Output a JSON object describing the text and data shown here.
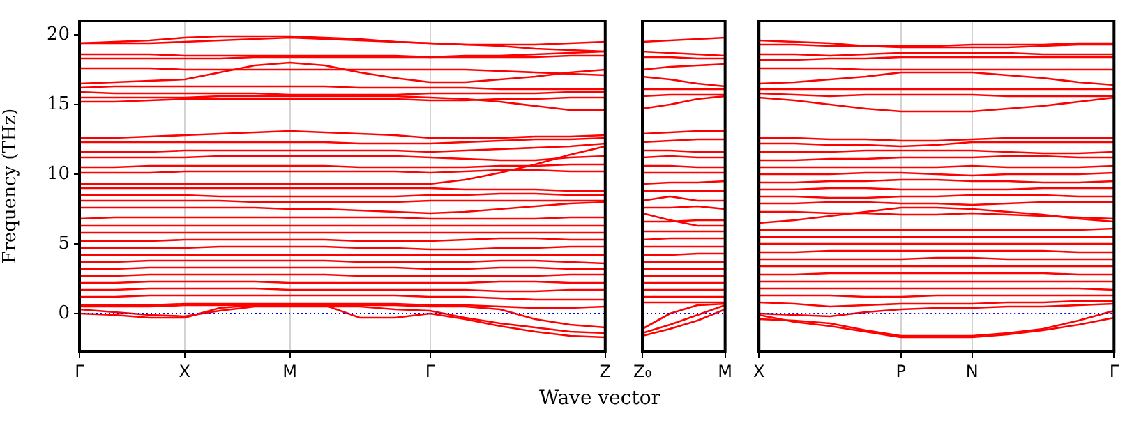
{
  "chart_data": [
    {
      "type": "line",
      "color": "#ff0000",
      "ylabel": "Frequency (THz)",
      "ylim": [
        -2.7,
        21
      ],
      "yticks": [
        0,
        5,
        10,
        15,
        20
      ],
      "grid": "x",
      "ref_lines": [
        {
          "axis": "y",
          "value": 0,
          "color": "#0000ff",
          "line_style": "dotted"
        }
      ],
      "categories": [
        "Γ",
        null,
        null,
        "X",
        null,
        null,
        "M",
        null,
        null,
        null,
        "Γ",
        null,
        null,
        null,
        null,
        "Z"
      ],
      "series": [
        {
          "values": [
            19.4,
            19.5,
            19.6,
            19.8,
            19.9,
            19.9,
            19.9,
            19.8,
            19.7,
            19.5,
            19.4,
            19.3,
            19.2,
            19.0,
            18.9,
            18.8
          ]
        },
        {
          "values": [
            19.4,
            19.4,
            19.4,
            19.5,
            19.6,
            19.7,
            19.8,
            19.7,
            19.6,
            19.5,
            19.4,
            19.3,
            19.3,
            19.3,
            19.4,
            19.5
          ]
        },
        {
          "values": [
            18.6,
            18.6,
            18.6,
            18.5,
            18.5,
            18.5,
            18.5,
            18.5,
            18.5,
            18.5,
            18.4,
            18.5,
            18.5,
            18.6,
            18.7,
            18.8
          ]
        },
        {
          "values": [
            18.3,
            18.3,
            18.3,
            18.3,
            18.3,
            18.4,
            18.4,
            18.4,
            18.4,
            18.4,
            18.4,
            18.4,
            18.4,
            18.4,
            18.5,
            18.5
          ]
        },
        {
          "values": [
            17.6,
            17.6,
            17.6,
            17.5,
            17.5,
            17.5,
            17.5,
            17.5,
            17.5,
            17.5,
            17.5,
            17.5,
            17.4,
            17.3,
            17.2,
            17.1
          ]
        },
        {
          "values": [
            16.5,
            16.6,
            16.7,
            16.8,
            17.3,
            17.8,
            18.0,
            17.8,
            17.3,
            16.9,
            16.6,
            16.6,
            16.8,
            17.0,
            17.3,
            17.5
          ]
        },
        {
          "values": [
            16.2,
            16.3,
            16.3,
            16.3,
            16.3,
            16.3,
            16.3,
            16.3,
            16.2,
            16.2,
            16.2,
            16.2,
            16.1,
            16.1,
            16.1,
            16.1
          ]
        },
        {
          "values": [
            15.9,
            15.8,
            15.8,
            15.8,
            15.8,
            15.8,
            15.7,
            15.7,
            15.7,
            15.7,
            15.8,
            15.8,
            15.8,
            15.8,
            15.9,
            15.9
          ]
        },
        {
          "values": [
            15.5,
            15.5,
            15.5,
            15.5,
            15.6,
            15.6,
            15.6,
            15.6,
            15.6,
            15.6,
            15.5,
            15.4,
            15.2,
            14.9,
            14.6,
            14.6
          ]
        },
        {
          "values": [
            15.2,
            15.2,
            15.3,
            15.4,
            15.4,
            15.4,
            15.4,
            15.4,
            15.4,
            15.4,
            15.3,
            15.3,
            15.4,
            15.4,
            15.5,
            15.5
          ]
        },
        {
          "values": [
            12.6,
            12.6,
            12.7,
            12.8,
            12.9,
            13.0,
            13.1,
            13.0,
            12.9,
            12.8,
            12.6,
            12.6,
            12.6,
            12.7,
            12.7,
            12.8
          ]
        },
        {
          "values": [
            12.3,
            12.3,
            12.3,
            12.3,
            12.3,
            12.3,
            12.3,
            12.3,
            12.2,
            12.2,
            12.2,
            12.3,
            12.4,
            12.5,
            12.5,
            12.6
          ]
        },
        {
          "values": [
            11.6,
            11.6,
            11.6,
            11.7,
            11.7,
            11.7,
            11.7,
            11.7,
            11.7,
            11.7,
            11.6,
            11.7,
            11.8,
            11.9,
            12.0,
            12.2
          ]
        },
        {
          "values": [
            11.2,
            11.2,
            11.2,
            11.2,
            11.3,
            11.3,
            11.3,
            11.3,
            11.3,
            11.3,
            11.2,
            11.1,
            11.0,
            11.0,
            11.2,
            11.3
          ]
        },
        {
          "values": [
            10.5,
            10.5,
            10.6,
            10.6,
            10.6,
            10.6,
            10.6,
            10.6,
            10.5,
            10.5,
            10.5,
            10.5,
            10.6,
            10.6,
            10.7,
            10.7
          ]
        },
        {
          "values": [
            10.1,
            10.1,
            10.1,
            10.2,
            10.2,
            10.2,
            10.2,
            10.2,
            10.2,
            10.2,
            10.1,
            10.2,
            10.3,
            10.3,
            10.2,
            10.2
          ]
        },
        {
          "values": [
            9.3,
            9.3,
            9.3,
            9.3,
            9.3,
            9.3,
            9.3,
            9.3,
            9.3,
            9.3,
            9.3,
            9.6,
            10.1,
            10.7,
            11.4,
            12.0
          ]
        },
        {
          "values": [
            9.0,
            9.0,
            9.0,
            9.0,
            9.0,
            9.0,
            9.0,
            9.0,
            9.0,
            9.0,
            9.0,
            8.9,
            8.9,
            8.9,
            8.8,
            8.8
          ]
        },
        {
          "values": [
            8.5,
            8.5,
            8.5,
            8.5,
            8.4,
            8.4,
            8.4,
            8.4,
            8.4,
            8.4,
            8.5,
            8.5,
            8.6,
            8.6,
            8.5,
            8.5
          ]
        },
        {
          "values": [
            8.1,
            8.1,
            8.1,
            8.1,
            8.1,
            8.0,
            8.0,
            8.0,
            8.0,
            8.0,
            8.1,
            8.1,
            8.1,
            8.1,
            8.1,
            8.1
          ]
        },
        {
          "values": [
            7.6,
            7.6,
            7.6,
            7.6,
            7.6,
            7.6,
            7.5,
            7.5,
            7.4,
            7.3,
            7.2,
            7.3,
            7.5,
            7.7,
            7.9,
            8.0
          ]
        },
        {
          "values": [
            6.8,
            6.9,
            6.9,
            6.9,
            6.9,
            6.9,
            6.9,
            6.9,
            6.9,
            6.9,
            6.8,
            6.8,
            6.8,
            6.8,
            6.9,
            6.9
          ]
        },
        {
          "values": [
            6.3,
            6.3,
            6.3,
            6.3,
            6.3,
            6.3,
            6.3,
            6.3,
            6.3,
            6.3,
            6.3,
            6.3,
            6.3,
            6.3,
            6.3,
            6.3
          ]
        },
        {
          "values": [
            5.8,
            5.8,
            5.8,
            5.8,
            5.8,
            5.8,
            5.8,
            5.8,
            5.8,
            5.8,
            5.8,
            5.8,
            5.8,
            5.8,
            5.8,
            5.8
          ]
        },
        {
          "values": [
            5.2,
            5.2,
            5.2,
            5.3,
            5.3,
            5.3,
            5.3,
            5.3,
            5.2,
            5.2,
            5.2,
            5.3,
            5.4,
            5.4,
            5.3,
            5.3
          ]
        },
        {
          "values": [
            4.7,
            4.7,
            4.7,
            4.7,
            4.8,
            4.8,
            4.8,
            4.8,
            4.7,
            4.7,
            4.6,
            4.6,
            4.7,
            4.7,
            4.8,
            4.8
          ]
        },
        {
          "values": [
            4.2,
            4.2,
            4.2,
            4.2,
            4.2,
            4.2,
            4.2,
            4.2,
            4.2,
            4.2,
            4.2,
            4.2,
            4.2,
            4.2,
            4.2,
            4.2
          ]
        },
        {
          "values": [
            3.7,
            3.7,
            3.8,
            3.8,
            3.8,
            3.8,
            3.8,
            3.8,
            3.7,
            3.7,
            3.7,
            3.7,
            3.8,
            3.8,
            3.7,
            3.6
          ]
        },
        {
          "values": [
            3.2,
            3.2,
            3.3,
            3.3,
            3.3,
            3.3,
            3.3,
            3.3,
            3.3,
            3.3,
            3.2,
            3.2,
            3.3,
            3.3,
            3.2,
            3.2
          ]
        },
        {
          "values": [
            2.7,
            2.7,
            2.8,
            2.8,
            2.8,
            2.8,
            2.8,
            2.8,
            2.7,
            2.7,
            2.7,
            2.7,
            2.7,
            2.7,
            2.8,
            2.8
          ]
        },
        {
          "values": [
            2.2,
            2.2,
            2.3,
            2.3,
            2.3,
            2.3,
            2.2,
            2.2,
            2.2,
            2.2,
            2.2,
            2.2,
            2.3,
            2.3,
            2.2,
            2.2
          ]
        },
        {
          "values": [
            1.7,
            1.7,
            1.8,
            1.8,
            1.8,
            1.8,
            1.7,
            1.7,
            1.7,
            1.7,
            1.7,
            1.7,
            1.6,
            1.6,
            1.7,
            1.7
          ]
        },
        {
          "values": [
            1.2,
            1.2,
            1.3,
            1.3,
            1.3,
            1.3,
            1.3,
            1.3,
            1.3,
            1.3,
            1.2,
            1.2,
            1.1,
            1.0,
            1.0,
            1.0
          ]
        },
        {
          "values": [
            0.6,
            0.6,
            0.6,
            0.7,
            0.7,
            0.7,
            0.7,
            0.7,
            0.7,
            0.7,
            0.6,
            0.6,
            0.5,
            0.4,
            0.4,
            0.5
          ]
        },
        {
          "values": [
            0.0,
            -0.1,
            -0.3,
            -0.3,
            0.4,
            0.6,
            0.6,
            0.6,
            -0.3,
            -0.3,
            0.0,
            -0.4,
            -0.9,
            -1.3,
            -1.6,
            -1.7
          ]
        },
        {
          "values": [
            0.3,
            0.1,
            -0.1,
            -0.2,
            0.2,
            0.5,
            0.5,
            0.5,
            0.5,
            0.3,
            0.2,
            -0.3,
            -0.7,
            -1.0,
            -1.3,
            -1.4
          ]
        },
        {
          "values": [
            0.5,
            0.5,
            0.5,
            0.6,
            0.6,
            0.6,
            0.6,
            0.6,
            0.6,
            0.6,
            0.5,
            0.5,
            0.3,
            -0.4,
            -0.8,
            -1.0
          ]
        }
      ]
    },
    {
      "type": "line",
      "color": "#ff0000",
      "xlabel": "Wave vector",
      "tick_labels": "x",
      "ylim": [
        -2.7,
        21
      ],
      "ref_lines": [
        {
          "axis": "y",
          "value": 0,
          "color": "#0000ff",
          "line_style": "dotted"
        }
      ],
      "categories": [
        "Z₀",
        null,
        null,
        "M"
      ],
      "series": [
        {
          "values": [
            19.5,
            19.6,
            19.7,
            19.8
          ]
        },
        {
          "values": [
            18.8,
            18.7,
            18.6,
            18.5
          ]
        },
        {
          "values": [
            18.4,
            18.4,
            18.3,
            18.3
          ]
        },
        {
          "values": [
            17.5,
            17.7,
            17.8,
            17.9
          ]
        },
        {
          "values": [
            17.0,
            16.8,
            16.5,
            16.3
          ]
        },
        {
          "values": [
            16.1,
            16.1,
            16.1,
            16.1
          ]
        },
        {
          "values": [
            15.6,
            15.7,
            15.7,
            15.7
          ]
        },
        {
          "values": [
            14.7,
            15.0,
            15.4,
            15.6
          ]
        },
        {
          "values": [
            12.9,
            13.0,
            13.1,
            13.1
          ]
        },
        {
          "values": [
            12.3,
            12.4,
            12.5,
            12.5
          ]
        },
        {
          "values": [
            11.7,
            11.7,
            11.6,
            11.6
          ]
        },
        {
          "values": [
            11.2,
            11.3,
            11.2,
            11.2
          ]
        },
        {
          "values": [
            10.6,
            10.6,
            10.5,
            10.5
          ]
        },
        {
          "values": [
            10.1,
            10.1,
            10.1,
            10.1
          ]
        },
        {
          "values": [
            9.3,
            9.4,
            9.4,
            9.5
          ]
        },
        {
          "values": [
            8.8,
            8.8,
            8.8,
            8.8
          ]
        },
        {
          "values": [
            8.1,
            8.4,
            8.1,
            8.1
          ]
        },
        {
          "values": [
            7.6,
            7.6,
            7.7,
            7.5
          ]
        },
        {
          "values": [
            7.2,
            6.7,
            6.3,
            6.3
          ]
        },
        {
          "values": [
            6.6,
            6.6,
            6.7,
            6.7
          ]
        },
        {
          "values": [
            5.9,
            5.9,
            5.9,
            5.9
          ]
        },
        {
          "values": [
            5.3,
            5.4,
            5.4,
            5.4
          ]
        },
        {
          "values": [
            4.8,
            4.8,
            4.8,
            4.8
          ]
        },
        {
          "values": [
            4.2,
            4.2,
            4.3,
            4.3
          ]
        },
        {
          "values": [
            3.7,
            3.7,
            3.7,
            3.7
          ]
        },
        {
          "values": [
            3.2,
            3.2,
            3.2,
            3.2
          ]
        },
        {
          "values": [
            2.7,
            2.7,
            2.7,
            2.7
          ]
        },
        {
          "values": [
            2.2,
            2.2,
            2.2,
            2.2
          ]
        },
        {
          "values": [
            1.7,
            1.7,
            1.7,
            1.7
          ]
        },
        {
          "values": [
            1.2,
            1.2,
            1.2,
            1.2
          ]
        },
        {
          "values": [
            0.8,
            0.8,
            0.8,
            0.8
          ]
        },
        {
          "values": [
            -1.6,
            -1.1,
            -0.5,
            0.3
          ]
        },
        {
          "values": [
            -1.4,
            -0.8,
            -0.1,
            0.6
          ]
        },
        {
          "values": [
            -1.1,
            0.0,
            0.6,
            0.7
          ]
        }
      ]
    },
    {
      "type": "line",
      "color": "#ff0000",
      "tick_labels": "x",
      "ylim": [
        -2.7,
        21
      ],
      "grid": "x",
      "ref_lines": [
        {
          "axis": "y",
          "value": 0,
          "color": "#0000ff",
          "line_style": "dotted"
        }
      ],
      "categories": [
        "X",
        null,
        null,
        null,
        "P",
        null,
        "N",
        null,
        null,
        null,
        "Γ"
      ],
      "series": [
        {
          "values": [
            19.6,
            19.5,
            19.4,
            19.2,
            19.1,
            19.1,
            19.1,
            19.1,
            19.2,
            19.3,
            19.3
          ]
        },
        {
          "values": [
            19.3,
            19.3,
            19.2,
            19.2,
            19.2,
            19.2,
            19.3,
            19.3,
            19.3,
            19.4,
            19.4
          ]
        },
        {
          "values": [
            18.6,
            18.6,
            18.5,
            18.6,
            18.7,
            18.7,
            18.7,
            18.7,
            18.6,
            18.6,
            18.6
          ]
        },
        {
          "values": [
            18.2,
            18.2,
            18.3,
            18.3,
            18.4,
            18.4,
            18.4,
            18.4,
            18.4,
            18.4,
            18.4
          ]
        },
        {
          "values": [
            17.6,
            17.6,
            17.6,
            17.5,
            17.5,
            17.5,
            17.5,
            17.5,
            17.5,
            17.5,
            17.5
          ]
        },
        {
          "values": [
            16.5,
            16.6,
            16.8,
            17.0,
            17.3,
            17.3,
            17.3,
            17.1,
            16.9,
            16.6,
            16.4
          ]
        },
        {
          "values": [
            16.1,
            16.1,
            16.1,
            16.1,
            16.1,
            16.1,
            16.1,
            16.1,
            16.1,
            16.1,
            16.1
          ]
        },
        {
          "values": [
            15.8,
            15.7,
            15.6,
            15.7,
            15.7,
            15.7,
            15.7,
            15.6,
            15.6,
            15.6,
            15.6
          ]
        },
        {
          "values": [
            15.5,
            15.3,
            15.0,
            14.7,
            14.5,
            14.5,
            14.5,
            14.7,
            14.9,
            15.2,
            15.5
          ]
        },
        {
          "values": [
            12.6,
            12.6,
            12.5,
            12.5,
            12.4,
            12.4,
            12.5,
            12.6,
            12.6,
            12.6,
            12.6
          ]
        },
        {
          "values": [
            12.2,
            12.2,
            12.1,
            12.1,
            12.0,
            12.1,
            12.3,
            12.3,
            12.3,
            12.3,
            12.3
          ]
        },
        {
          "values": [
            11.6,
            11.6,
            11.6,
            11.7,
            11.7,
            11.7,
            11.7,
            11.6,
            11.5,
            11.5,
            11.6
          ]
        },
        {
          "values": [
            11.0,
            11.0,
            11.1,
            11.1,
            11.2,
            11.2,
            11.2,
            11.3,
            11.3,
            11.2,
            11.2
          ]
        },
        {
          "values": [
            10.5,
            10.5,
            10.5,
            10.5,
            10.5,
            10.5,
            10.6,
            10.5,
            10.5,
            10.5,
            10.6
          ]
        },
        {
          "values": [
            10.0,
            10.0,
            10.0,
            10.1,
            10.1,
            10.0,
            9.9,
            10.0,
            10.0,
            10.0,
            10.1
          ]
        },
        {
          "values": [
            9.4,
            9.4,
            9.5,
            9.5,
            9.6,
            9.6,
            9.5,
            9.5,
            9.4,
            9.4,
            9.5
          ]
        },
        {
          "values": [
            8.9,
            8.9,
            9.0,
            9.0,
            8.9,
            8.9,
            8.9,
            8.9,
            9.0,
            9.0,
            9.0
          ]
        },
        {
          "values": [
            8.4,
            8.4,
            8.3,
            8.3,
            8.4,
            8.4,
            8.5,
            8.5,
            8.5,
            8.4,
            8.4
          ]
        },
        {
          "values": [
            7.9,
            7.9,
            8.0,
            8.0,
            7.9,
            7.9,
            7.8,
            7.9,
            8.0,
            8.0,
            8.0
          ]
        },
        {
          "values": [
            7.3,
            7.3,
            7.2,
            7.2,
            7.1,
            7.1,
            7.2,
            7.1,
            7.0,
            6.9,
            6.8
          ]
        },
        {
          "values": [
            6.5,
            6.7,
            7.0,
            7.3,
            7.6,
            7.6,
            7.5,
            7.3,
            7.1,
            6.8,
            6.6
          ]
        },
        {
          "values": [
            6.0,
            6.0,
            6.0,
            6.0,
            6.0,
            6.0,
            6.0,
            6.0,
            6.0,
            6.0,
            6.1
          ]
        },
        {
          "values": [
            5.5,
            5.5,
            5.5,
            5.5,
            5.5,
            5.5,
            5.5,
            5.5,
            5.5,
            5.5,
            5.5
          ]
        },
        {
          "values": [
            5.0,
            5.0,
            5.0,
            5.0,
            5.0,
            5.0,
            5.0,
            5.0,
            5.0,
            5.0,
            5.0
          ]
        },
        {
          "values": [
            4.4,
            4.4,
            4.5,
            4.5,
            4.5,
            4.5,
            4.5,
            4.5,
            4.5,
            4.4,
            4.4
          ]
        },
        {
          "values": [
            3.9,
            3.9,
            3.9,
            3.9,
            3.9,
            4.0,
            4.0,
            3.9,
            3.9,
            3.9,
            3.9
          ]
        },
        {
          "values": [
            3.4,
            3.4,
            3.4,
            3.4,
            3.4,
            3.4,
            3.4,
            3.4,
            3.4,
            3.4,
            3.4
          ]
        },
        {
          "values": [
            2.8,
            2.8,
            2.9,
            2.9,
            2.9,
            2.9,
            2.9,
            2.9,
            2.9,
            2.8,
            2.8
          ]
        },
        {
          "values": [
            2.3,
            2.3,
            2.3,
            2.3,
            2.3,
            2.3,
            2.3,
            2.3,
            2.3,
            2.3,
            2.3
          ]
        },
        {
          "values": [
            1.8,
            1.8,
            1.8,
            1.8,
            1.8,
            1.8,
            1.8,
            1.8,
            1.8,
            1.8,
            1.7
          ]
        },
        {
          "values": [
            1.3,
            1.3,
            1.3,
            1.2,
            1.2,
            1.3,
            1.3,
            1.3,
            1.3,
            1.3,
            1.3
          ]
        },
        {
          "values": [
            0.8,
            0.7,
            0.5,
            0.6,
            0.7,
            0.7,
            0.7,
            0.8,
            0.8,
            0.9,
            0.9
          ]
        },
        {
          "values": [
            0.0,
            -0.1,
            -0.2,
            0.1,
            0.3,
            0.4,
            0.4,
            0.5,
            0.5,
            0.6,
            0.7
          ]
        },
        {
          "values": [
            -0.4,
            -0.5,
            -0.7,
            -1.2,
            -1.6,
            -1.6,
            -1.6,
            -1.4,
            -1.1,
            -0.5,
            0.2
          ]
        },
        {
          "values": [
            -0.1,
            -0.6,
            -0.9,
            -1.3,
            -1.7,
            -1.7,
            -1.7,
            -1.5,
            -1.2,
            -0.8,
            -0.3
          ]
        }
      ]
    }
  ]
}
